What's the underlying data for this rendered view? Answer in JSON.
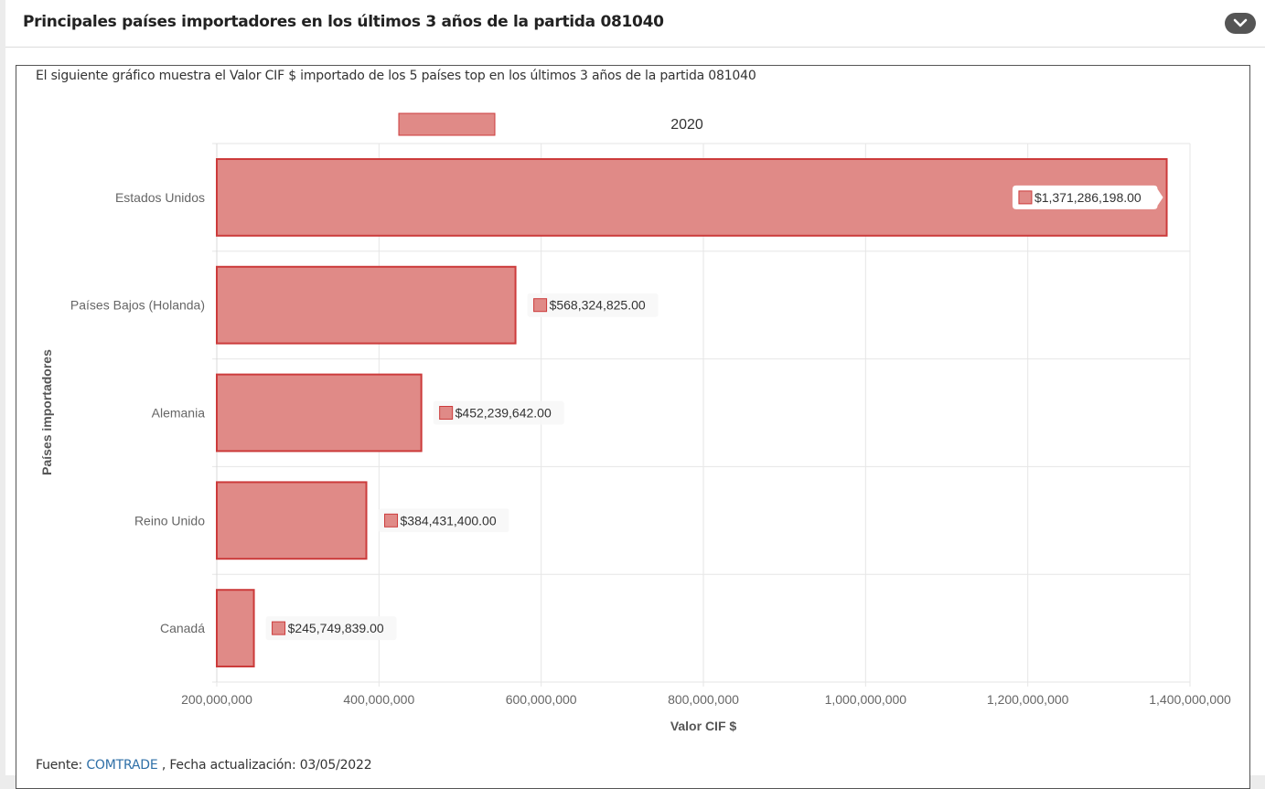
{
  "header": {
    "title": "Principales países importadores en los últimos 3 años de la partida 081040",
    "collapse_icon": "chevron-down-icon"
  },
  "description": "El siguiente gráfico muestra el Valor CIF $ importado de los 5 países top en los últimos 3 años de la partida 081040",
  "footer": {
    "source_label": "Fuente:",
    "source_link": "COMTRADE",
    "updated_text": ", Fecha actualización: 03/05/2022"
  },
  "colors": {
    "bar_fill": "#e08a87",
    "bar_stroke": "#cc3b3b",
    "grid": "#e6e6e6",
    "tick_text": "#666666",
    "axis_title": "#555555"
  },
  "chart_data": {
    "type": "bar",
    "orientation": "horizontal",
    "categories": [
      "Estados Unidos",
      "Países Bajos (Holanda)",
      "Alemania",
      "Reino Unido",
      "Canadá"
    ],
    "series": [
      {
        "name": "2020",
        "values": [
          1371286198,
          568324825,
          452239642,
          384431400,
          245749839
        ],
        "labels": [
          "$1,371,286,198.00",
          "$568,324,825.00",
          "$452,239,642.00",
          "$384,431,400.00",
          "$245,749,839.00"
        ]
      }
    ],
    "xlim": [
      200000000,
      1400000000
    ],
    "xticks": [
      200000000,
      400000000,
      600000000,
      800000000,
      1000000000,
      1200000000,
      1400000000
    ],
    "xtick_labels": [
      "200,000,000",
      "400,000,000",
      "600,000,000",
      "800,000,000",
      "1,000,000,000",
      "1,200,000,000",
      "1,400,000,000"
    ],
    "xlabel": "Valor CIF $",
    "ylabel": "Países importadores",
    "legend_position": "top",
    "grid": true
  }
}
